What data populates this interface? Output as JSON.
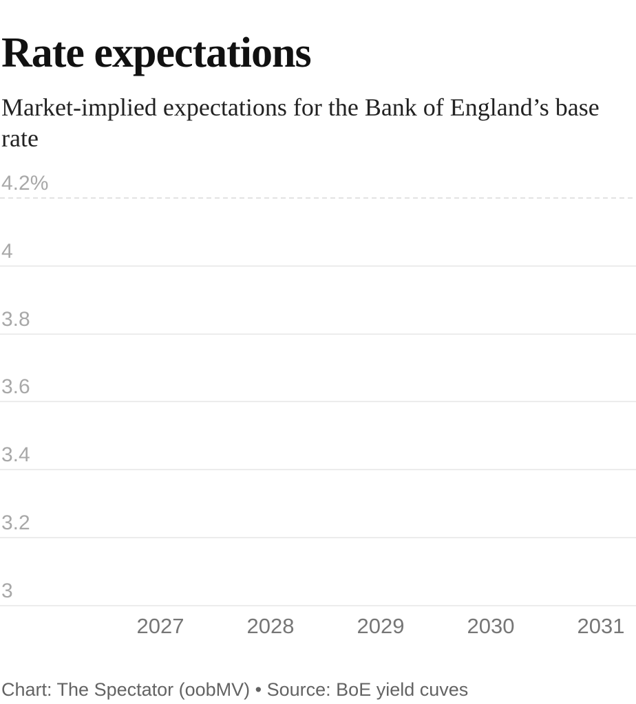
{
  "page": {
    "title": "Rate expectations",
    "subtitle": "Market-implied expectations for the Bank of England’s base rate",
    "footer": "Chart: The Spectator (oobMV) • Source: BoE yield cuves"
  },
  "chart_data": {
    "type": "line",
    "title": "Rate expectations",
    "subtitle": "Market-implied expectations for the Bank of England’s base rate",
    "xlabel": "",
    "ylabel": "",
    "x_tick_labels": [
      "2027",
      "2028",
      "2029",
      "2030",
      "2031"
    ],
    "y_tick_labels": [
      "4.2%",
      "4",
      "3.8",
      "3.6",
      "3.4",
      "3.2",
      "3"
    ],
    "y_tick_values": [
      4.2,
      4.0,
      3.8,
      3.6,
      3.4,
      3.2,
      3.0
    ],
    "ylim": [
      3.0,
      4.2
    ],
    "grid": true,
    "top_gridline_style": "dashed",
    "legend": "none",
    "series": [],
    "source_note": "Chart: The Spectator (oobMV) • Source: BoE yield cuves"
  },
  "colors": {
    "background": "#ffffff",
    "title": "#111111",
    "subtitle": "#222222",
    "y_tick": "#a8a8a8",
    "x_tick": "#767676",
    "footer": "#636363",
    "gridline": "#ececec",
    "gridline_dashed": "#e2e2e2"
  }
}
